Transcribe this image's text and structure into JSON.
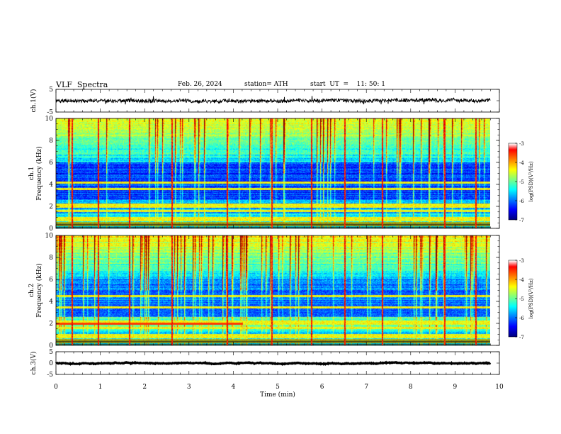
{
  "header": {
    "title": "VLF  Spectra",
    "date": "Feb. 26, 2024",
    "station": "station= ATH",
    "start_ut": "start  UT  =    11: 50: 1"
  },
  "chart_data": [
    {
      "type": "line",
      "panel": "ch1-waveform",
      "ylabel": "ch.1(V)",
      "ylim": [
        -5,
        5
      ],
      "yticks": [
        "5",
        "-5"
      ],
      "x_range_min": [
        0,
        9.8
      ],
      "baseline": 0,
      "color": "#000000"
    },
    {
      "type": "heatmap",
      "panel": "ch1-spectrogram",
      "ylabel": "ch.1\nFrequency  (kHz)",
      "ylim": [
        0,
        10
      ],
      "yticks": [
        "0",
        "2",
        "4",
        "6",
        "8",
        "10"
      ],
      "colorbar": {
        "label": "log(PSD)(V²/Hz)",
        "range": [
          -7,
          -3
        ],
        "ticks": [
          "-3",
          "-4",
          "-5",
          "-6",
          "-7"
        ]
      },
      "bands_khz": [
        0.3,
        0.5,
        0.8,
        1.0,
        1.6,
        2.0,
        2.2,
        3.6,
        4.2
      ],
      "impulses_min": [
        0.35,
        0.95,
        1.65,
        2.6,
        3.85,
        4.85,
        5.75,
        6.5,
        7.35,
        8.75,
        9.45
      ]
    },
    {
      "type": "heatmap",
      "panel": "ch2-spectrogram",
      "ylabel": "ch.2\nFrequency  (kHz)",
      "ylim": [
        0,
        10
      ],
      "yticks": [
        "0",
        "2",
        "4",
        "6",
        "8",
        "10"
      ],
      "colorbar": {
        "label": "log(PSD)(V²/Hz)",
        "range": [
          -7,
          -3
        ],
        "ticks": [
          "-3",
          "-4",
          "-5",
          "-6",
          "-7"
        ]
      },
      "bands_khz": [
        0.3,
        0.5,
        0.8,
        1.0,
        1.6,
        2.0,
        2.2,
        3.5,
        4.5
      ],
      "impulses_min": [
        0.35,
        0.95,
        1.65,
        2.6,
        3.85,
        4.85,
        5.75,
        6.5,
        7.35,
        8.75,
        9.45
      ]
    },
    {
      "type": "line",
      "panel": "ch3-waveform",
      "ylabel": "ch.3(V)",
      "ylim": [
        -5,
        5
      ],
      "yticks": [
        "5",
        "0",
        "-5"
      ],
      "x_range_min": [
        0,
        9.8
      ],
      "baseline": 0,
      "color": "#000000"
    }
  ],
  "xaxis": {
    "label": "Time  (min)",
    "range": [
      0,
      10
    ],
    "ticks": [
      "0",
      "1",
      "2",
      "3",
      "4",
      "5",
      "6",
      "7",
      "8",
      "9",
      "10"
    ]
  }
}
